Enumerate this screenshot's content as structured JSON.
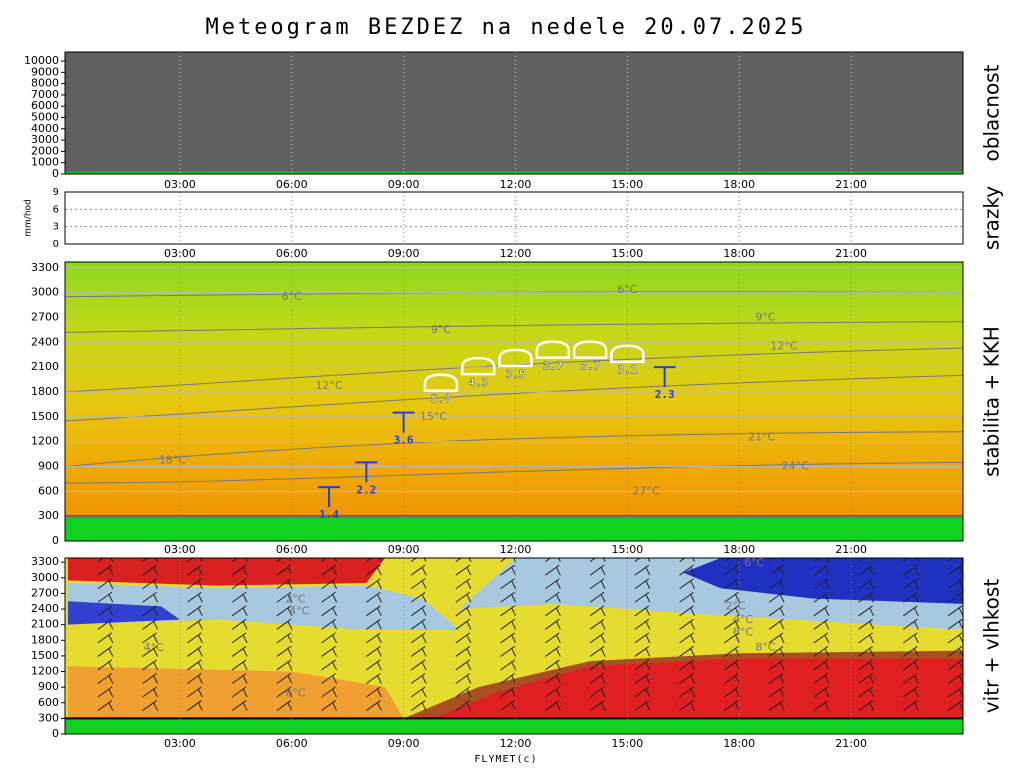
{
  "title": "Meteogram BEZDEZ na nedele 20.07.2025",
  "xlabel": "FLYMET(c)",
  "chart_data": [
    {
      "type": "cloudcover",
      "ylabel": "oblacnost",
      "ylim": [
        0,
        10800
      ],
      "yticks": [
        0,
        1000,
        2000,
        3000,
        4000,
        5000,
        6000,
        7000,
        8000,
        9000,
        10000
      ],
      "xlim": [
        0,
        24
      ],
      "xticks": [
        {
          "value": 3,
          "label": "03:00"
        },
        {
          "value": 6,
          "label": "06:00"
        },
        {
          "value": 9,
          "label": "09:00"
        },
        {
          "value": 12,
          "label": "12:00"
        },
        {
          "value": 15,
          "label": "15:00"
        },
        {
          "value": 18,
          "label": "18:00"
        },
        {
          "value": 21,
          "label": "21:00"
        }
      ]
    },
    {
      "type": "precipitation",
      "ylabel": "srazky",
      "yunit": "mm/hod",
      "ylim": [
        0,
        9
      ],
      "yticks": [
        0,
        3,
        6,
        9
      ],
      "xlim": [
        0,
        24
      ],
      "xticks": [
        {
          "value": 3,
          "label": "03:00"
        },
        {
          "value": 6,
          "label": "06:00"
        },
        {
          "value": 9,
          "label": "09:00"
        },
        {
          "value": 12,
          "label": "12:00"
        },
        {
          "value": 15,
          "label": "15:00"
        },
        {
          "value": 18,
          "label": "18:00"
        },
        {
          "value": 21,
          "label": "21:00"
        }
      ]
    },
    {
      "type": "stability",
      "ylabel": "stabilita + KKH",
      "ylim": [
        0,
        3370
      ],
      "yticks": [
        0,
        300,
        600,
        900,
        1200,
        1500,
        1800,
        2100,
        2400,
        2700,
        3000,
        3300
      ],
      "xlim": [
        0,
        24
      ],
      "xticks": [
        {
          "value": 3,
          "label": "03:00"
        },
        {
          "value": 6,
          "label": "06:00"
        },
        {
          "value": 9,
          "label": "09:00"
        },
        {
          "value": 12,
          "label": "12:00"
        },
        {
          "value": 15,
          "label": "15:00"
        },
        {
          "value": 18,
          "label": "18:00"
        },
        {
          "value": 21,
          "label": "21:00"
        }
      ],
      "ground": 300,
      "thermals": {
        "x": [
          7,
          8,
          9,
          16
        ],
        "y": [
          650,
          950,
          1550,
          2100
        ],
        "values": [
          1.4,
          2.2,
          3.6,
          2.3
        ]
      },
      "clouds": {
        "x": [
          10,
          11,
          12,
          13,
          14,
          15
        ],
        "y": [
          1900,
          2100,
          2200,
          2300,
          2300,
          2250
        ],
        "values": [
          5.8,
          4.3,
          3.5,
          3.7,
          3.7,
          3.1
        ]
      },
      "contour_labels": {
        "labels": [
          "6°C",
          "6°C",
          "9°C",
          "9°C",
          "12°C",
          "12°C",
          "15°C",
          "18°C",
          "21°C",
          "24°C",
          "27°C"
        ],
        "x": [
          6,
          15,
          10,
          18.7,
          7,
          19.2,
          9.8,
          2.8,
          18.6,
          19.5,
          15.5
        ],
        "y": [
          2950,
          3030,
          2550,
          2700,
          1870,
          2350,
          1500,
          970,
          1250,
          900,
          600
        ]
      }
    },
    {
      "type": "wind-humidity",
      "ylabel": "vitr + vlhkost",
      "ylim": [
        0,
        3380
      ],
      "yticks": [
        0,
        300,
        600,
        900,
        1200,
        1500,
        1800,
        2100,
        2400,
        2700,
        3000,
        3300
      ],
      "xlim": [
        0,
        24
      ],
      "xticks": [
        {
          "value": 3,
          "label": "03:00"
        },
        {
          "value": 6,
          "label": "06:00"
        },
        {
          "value": 9,
          "label": "09:00"
        },
        {
          "value": 12,
          "label": "12:00"
        },
        {
          "value": 15,
          "label": "15:00"
        },
        {
          "value": 18,
          "label": "18:00"
        },
        {
          "value": 21,
          "label": "21:00"
        }
      ],
      "ground": 300,
      "contour_labels": {
        "labels": [
          "2°C",
          "4°C",
          "4°C",
          "6°C",
          "6°C",
          "2°C",
          "4°C",
          "6°C",
          "8°C"
        ],
        "x": [
          6.1,
          6.2,
          2.3,
          6.1,
          18.4,
          17.9,
          18.1,
          18.1,
          18.7
        ],
        "y": [
          2580,
          2350,
          1650,
          780,
          3280,
          2450,
          2190,
          1950,
          1660
        ]
      }
    }
  ]
}
